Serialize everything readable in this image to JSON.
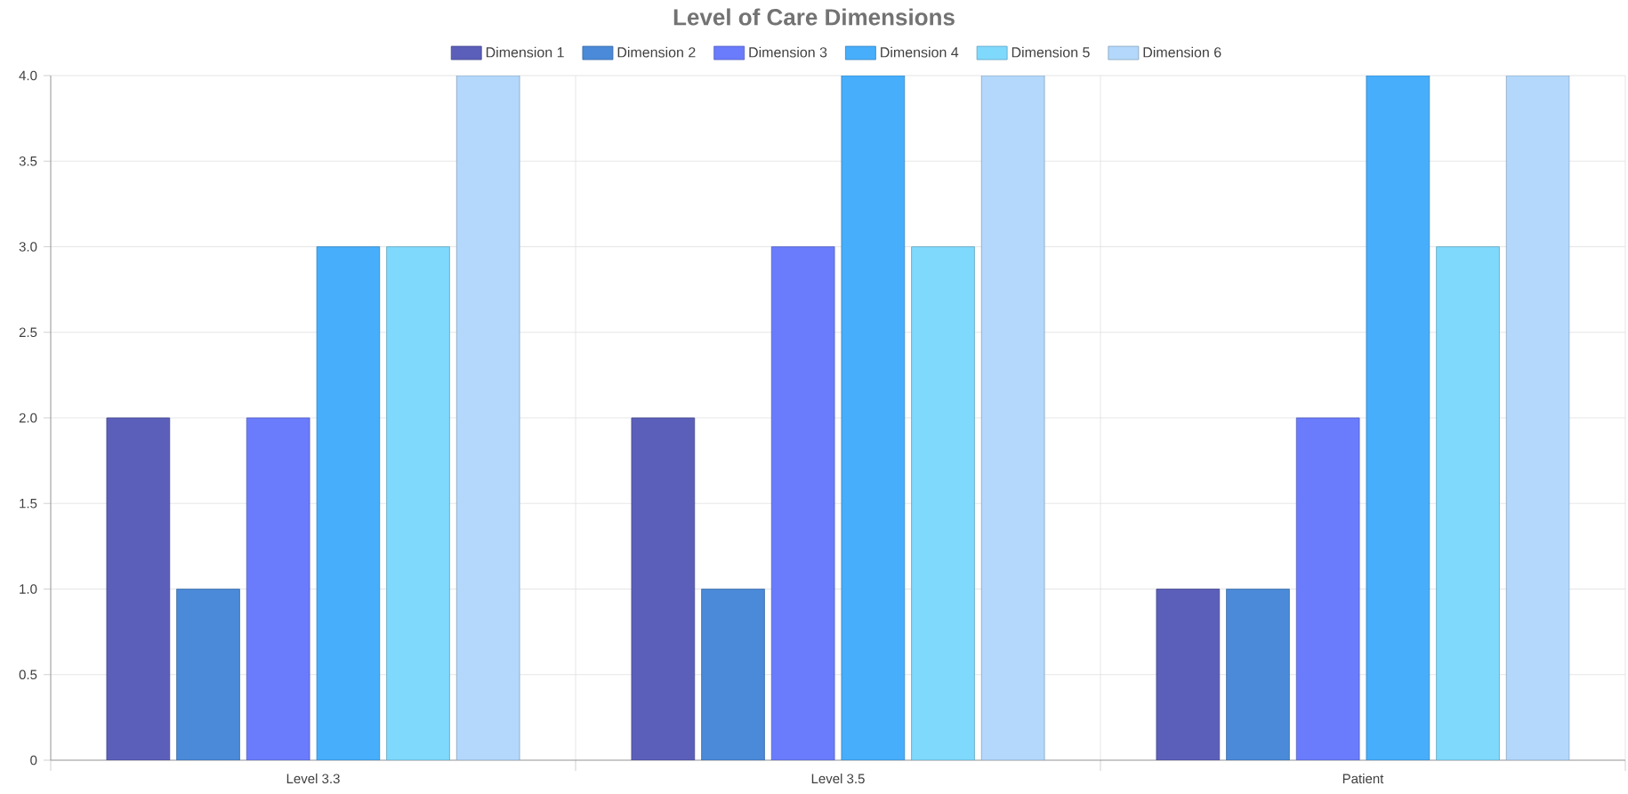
{
  "chart_data": {
    "type": "bar",
    "title": "Level of Care Dimensions",
    "categories": [
      "Level 3.3",
      "Level 3.5",
      "Patient"
    ],
    "series": [
      {
        "name": "Dimension 1",
        "color": "#5b5fb9",
        "values": [
          2,
          2,
          1
        ]
      },
      {
        "name": "Dimension 2",
        "color": "#4a8ad8",
        "values": [
          1,
          1,
          1
        ]
      },
      {
        "name": "Dimension 3",
        "color": "#6a7cfc",
        "values": [
          2,
          3,
          2
        ]
      },
      {
        "name": "Dimension 4",
        "color": "#47aefc",
        "values": [
          3,
          4,
          4
        ]
      },
      {
        "name": "Dimension 5",
        "color": "#7fd9fd",
        "values": [
          3,
          3,
          3
        ]
      },
      {
        "name": "Dimension 6",
        "color": "#b3d8fb",
        "values": [
          4,
          4,
          4
        ]
      }
    ],
    "ylim": [
      0,
      4
    ],
    "yticks": [
      0,
      0.5,
      {
        "value": 1,
        "label": "1.0"
      },
      1.5,
      {
        "value": 2,
        "label": "2.0"
      },
      2.5,
      {
        "value": 3,
        "label": "3.0"
      },
      3.5,
      {
        "value": 4,
        "label": "4.0"
      }
    ],
    "grid": true,
    "legend": "top"
  }
}
